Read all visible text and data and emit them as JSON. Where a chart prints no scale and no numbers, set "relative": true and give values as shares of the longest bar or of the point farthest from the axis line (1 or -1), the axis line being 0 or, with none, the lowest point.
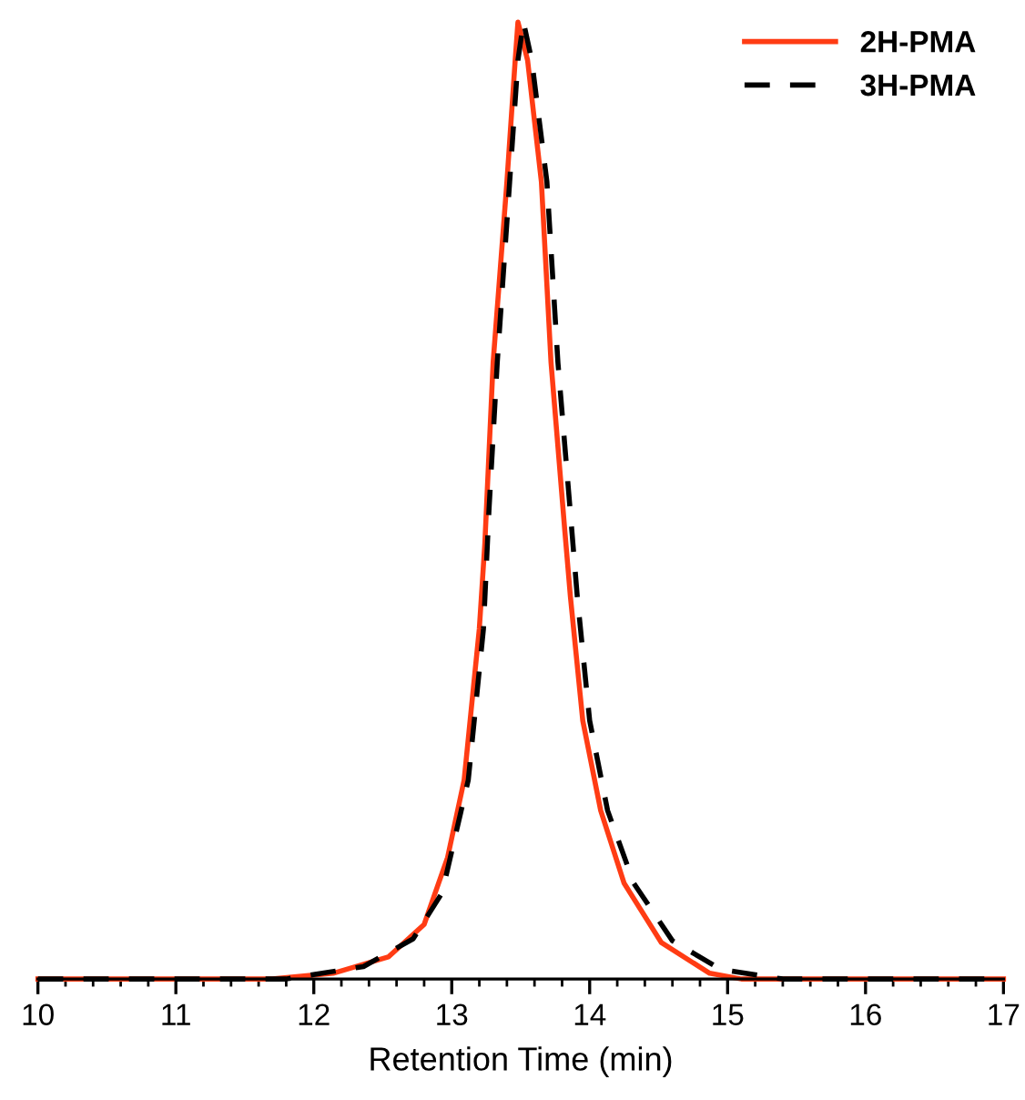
{
  "chart_data": {
    "type": "line",
    "xlabel": "Retention Time (min)",
    "relative": true,
    "xlim": [
      10,
      17
    ],
    "xticks": [
      10,
      11,
      12,
      13,
      14,
      15,
      16,
      17
    ],
    "grid": false,
    "legend": "top right",
    "marker": "none",
    "series": [
      {
        "name": "2H-PMA",
        "color": "#ff3c14",
        "line_style": "solid",
        "x": [
          10,
          11.7,
          12.14,
          12.54,
          12.8,
          12.97,
          13.09,
          13.2,
          13.24,
          13.3,
          13.4,
          13.46,
          13.48,
          13.55,
          13.65,
          13.72,
          13.82,
          13.86,
          13.95,
          14.08,
          14.25,
          14.52,
          14.87,
          15.1,
          17
        ],
        "values": [
          0,
          0,
          0.006,
          0.023,
          0.057,
          0.127,
          0.208,
          0.366,
          0.455,
          0.644,
          0.833,
          0.96,
          1,
          0.96,
          0.833,
          0.644,
          0.468,
          0.4,
          0.27,
          0.176,
          0.1,
          0.038,
          0.006,
          0,
          0
        ]
      },
      {
        "name": "3H-PMA",
        "color": "#000000",
        "line_style": "dashed",
        "x": [
          10,
          11.8,
          12.36,
          12.72,
          12.93,
          13.12,
          13.23,
          13.27,
          13.33,
          13.42,
          13.48,
          13.52,
          13.58,
          13.69,
          13.77,
          13.87,
          13.91,
          14.0,
          14.13,
          14.32,
          14.6,
          14.95,
          15.4,
          17
        ],
        "values": [
          0,
          0,
          0.013,
          0.042,
          0.09,
          0.208,
          0.366,
          0.49,
          0.644,
          0.833,
          0.96,
          1,
          0.96,
          0.833,
          0.644,
          0.47,
          0.4,
          0.27,
          0.176,
          0.1,
          0.04,
          0.01,
          0,
          0
        ]
      }
    ]
  }
}
